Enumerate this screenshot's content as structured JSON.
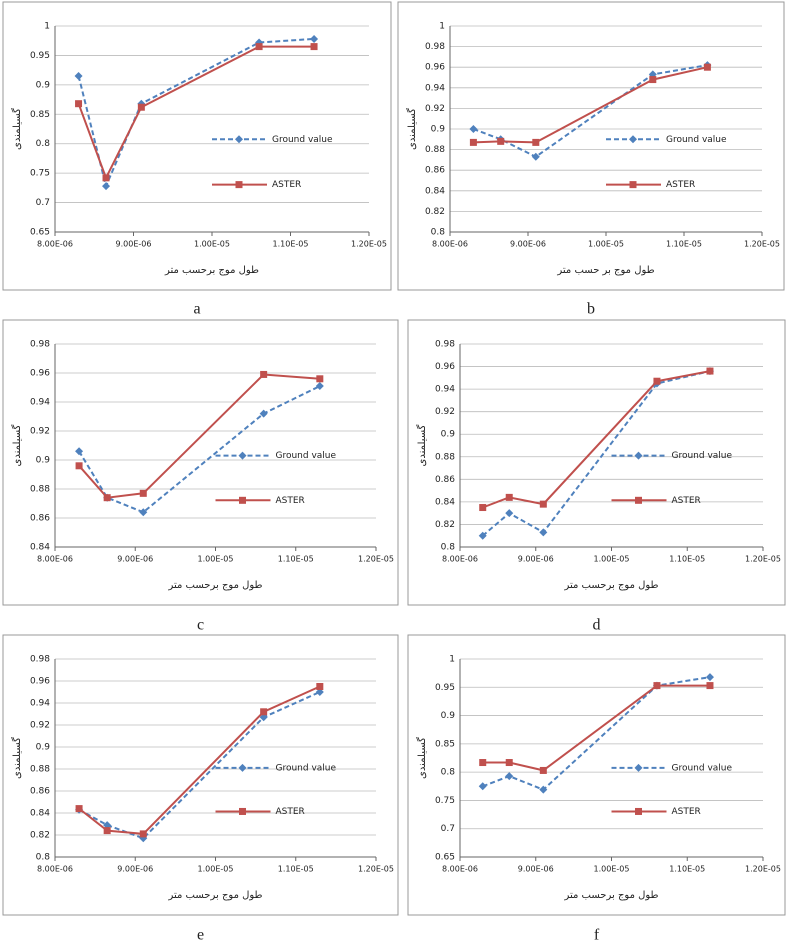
{
  "chart_data": [
    {
      "type": "line",
      "panel": "a",
      "xlabel": "طول موج برحسب متر",
      "ylabel": "گسیلمندی",
      "x": [
        8.3e-06,
        8.65e-06,
        9.1e-06,
        1.06e-05,
        1.13e-05
      ],
      "xlim": [
        8e-06,
        1.2e-05
      ],
      "xticks": [
        {
          "value": 8e-06,
          "label": "8.00E-06"
        },
        {
          "value": 9e-06,
          "label": "9.00E-06"
        },
        {
          "value": 1e-05,
          "label": "1.00E-05"
        },
        {
          "value": 1.1e-05,
          "label": "1.10E-05"
        },
        {
          "value": 1.2e-05,
          "label": "1.20E-05"
        }
      ],
      "ylim": [
        0.65,
        1
      ],
      "yticks": [
        0.65,
        0.7,
        0.75,
        0.8,
        0.85,
        0.9,
        0.95,
        1
      ],
      "grid": true,
      "legend": "right",
      "series": [
        {
          "name": "Ground value",
          "color": "#4f81bd",
          "line_style": "dashed",
          "marker": "diamond",
          "values": [
            0.915,
            0.728,
            0.868,
            0.972,
            0.978
          ]
        },
        {
          "name": "ASTER",
          "color": "#c0504d",
          "line_style": "solid",
          "marker": "square",
          "values": [
            0.868,
            0.742,
            0.862,
            0.965,
            0.965
          ]
        }
      ]
    },
    {
      "type": "line",
      "panel": "b",
      "xlabel": "طول موج بر حسب متر",
      "ylabel": "گسیلمندی",
      "x": [
        8.3e-06,
        8.65e-06,
        9.1e-06,
        1.06e-05,
        1.13e-05
      ],
      "xlim": [
        8e-06,
        1.2e-05
      ],
      "xticks": [
        {
          "value": 8e-06,
          "label": "8.00E-06"
        },
        {
          "value": 9e-06,
          "label": "9.00E-06"
        },
        {
          "value": 1e-05,
          "label": "1.00E-05"
        },
        {
          "value": 1.1e-05,
          "label": "1.10E-05"
        },
        {
          "value": 1.2e-05,
          "label": "1.20E-05"
        }
      ],
      "ylim": [
        0.8,
        1
      ],
      "yticks": [
        0.8,
        0.82,
        0.84,
        0.86,
        0.88,
        0.9,
        0.92,
        0.94,
        0.96,
        0.98,
        1
      ],
      "grid": true,
      "legend": "right",
      "series": [
        {
          "name": "Ground value",
          "color": "#4f81bd",
          "line_style": "dashed",
          "marker": "diamond",
          "values": [
            0.9,
            0.89,
            0.873,
            0.953,
            0.962
          ]
        },
        {
          "name": "ASTER",
          "color": "#c0504d",
          "line_style": "solid",
          "marker": "square",
          "values": [
            0.887,
            0.888,
            0.887,
            0.948,
            0.96
          ]
        }
      ]
    },
    {
      "type": "line",
      "panel": "c",
      "xlabel": "طول موج برحسب متر",
      "ylabel": "گسیلمندی",
      "x": [
        8.3e-06,
        8.65e-06,
        9.1e-06,
        1.06e-05,
        1.13e-05
      ],
      "xlim": [
        8e-06,
        1.2e-05
      ],
      "xticks": [
        {
          "value": 8e-06,
          "label": "8.00E-06"
        },
        {
          "value": 9e-06,
          "label": "9.00E-06"
        },
        {
          "value": 1e-05,
          "label": "1.00E-05"
        },
        {
          "value": 1.1e-05,
          "label": "1.10E-05"
        },
        {
          "value": 1.2e-05,
          "label": "1.20E-05"
        }
      ],
      "ylim": [
        0.84,
        0.98
      ],
      "yticks": [
        0.84,
        0.86,
        0.88,
        0.9,
        0.92,
        0.94,
        0.96,
        0.98
      ],
      "grid": true,
      "legend": "right",
      "series": [
        {
          "name": "Ground value",
          "color": "#4f81bd",
          "line_style": "dashed",
          "marker": "diamond",
          "values": [
            0.906,
            0.874,
            0.864,
            0.932,
            0.951
          ]
        },
        {
          "name": "ASTER",
          "color": "#c0504d",
          "line_style": "solid",
          "marker": "square",
          "values": [
            0.896,
            0.874,
            0.877,
            0.959,
            0.956
          ]
        }
      ]
    },
    {
      "type": "line",
      "panel": "d",
      "xlabel": "طول موج برحسب متر",
      "ylabel": "گسیلمندی",
      "x": [
        8.3e-06,
        8.65e-06,
        9.1e-06,
        1.06e-05,
        1.13e-05
      ],
      "xlim": [
        8e-06,
        1.2e-05
      ],
      "xticks": [
        {
          "value": 8e-06,
          "label": "8.00E-06"
        },
        {
          "value": 9e-06,
          "label": "9.00E-06"
        },
        {
          "value": 1e-05,
          "label": "1.00E-05"
        },
        {
          "value": 1.1e-05,
          "label": "1.10E-05"
        },
        {
          "value": 1.2e-05,
          "label": "1.20E-05"
        }
      ],
      "ylim": [
        0.8,
        0.98
      ],
      "yticks": [
        0.8,
        0.82,
        0.84,
        0.86,
        0.88,
        0.9,
        0.92,
        0.94,
        0.96,
        0.98
      ],
      "grid": true,
      "legend": "right",
      "series": [
        {
          "name": "Ground value",
          "color": "#4f81bd",
          "line_style": "dashed",
          "marker": "diamond",
          "values": [
            0.81,
            0.83,
            0.813,
            0.945,
            0.956
          ]
        },
        {
          "name": "ASTER",
          "color": "#c0504d",
          "line_style": "solid",
          "marker": "square",
          "values": [
            0.835,
            0.844,
            0.838,
            0.947,
            0.956
          ]
        }
      ]
    },
    {
      "type": "line",
      "panel": "e",
      "xlabel": "طول موج برحسب متر",
      "ylabel": "گسیلمندی",
      "x": [
        8.3e-06,
        8.65e-06,
        9.1e-06,
        1.06e-05,
        1.13e-05
      ],
      "xlim": [
        8e-06,
        1.2e-05
      ],
      "xticks": [
        {
          "value": 8e-06,
          "label": "8.00E-06"
        },
        {
          "value": 9e-06,
          "label": "9.00E-06"
        },
        {
          "value": 1e-05,
          "label": "1.00E-05"
        },
        {
          "value": 1.1e-05,
          "label": "1.10E-05"
        },
        {
          "value": 1.2e-05,
          "label": "1.20E-05"
        }
      ],
      "ylim": [
        0.8,
        0.98
      ],
      "yticks": [
        0.8,
        0.82,
        0.84,
        0.86,
        0.88,
        0.9,
        0.92,
        0.94,
        0.96,
        0.98
      ],
      "grid": true,
      "legend": "right",
      "series": [
        {
          "name": "Ground value",
          "color": "#4f81bd",
          "line_style": "dashed",
          "marker": "diamond",
          "values": [
            0.843,
            0.829,
            0.817,
            0.927,
            0.95
          ]
        },
        {
          "name": "ASTER",
          "color": "#c0504d",
          "line_style": "solid",
          "marker": "square",
          "values": [
            0.844,
            0.824,
            0.821,
            0.932,
            0.955
          ]
        }
      ]
    },
    {
      "type": "line",
      "panel": "f",
      "xlabel": "طول موج برحسب متر",
      "ylabel": "گسیلمندی",
      "x": [
        8.3e-06,
        8.65e-06,
        9.1e-06,
        1.06e-05,
        1.13e-05
      ],
      "xlim": [
        8e-06,
        1.2e-05
      ],
      "xticks": [
        {
          "value": 8e-06,
          "label": "8.00E-06"
        },
        {
          "value": 9e-06,
          "label": "9.00E-06"
        },
        {
          "value": 1e-05,
          "label": "1.00E-05"
        },
        {
          "value": 1.1e-05,
          "label": "1.10E-05"
        },
        {
          "value": 1.2e-05,
          "label": "1.20E-05"
        }
      ],
      "ylim": [
        0.65,
        1
      ],
      "yticks": [
        0.65,
        0.7,
        0.75,
        0.8,
        0.85,
        0.9,
        0.95,
        1
      ],
      "grid": true,
      "legend": "right",
      "series": [
        {
          "name": "Ground value",
          "color": "#4f81bd",
          "line_style": "dashed",
          "marker": "diamond",
          "values": [
            0.775,
            0.793,
            0.769,
            0.953,
            0.968
          ]
        },
        {
          "name": "ASTER",
          "color": "#c0504d",
          "line_style": "solid",
          "marker": "square",
          "values": [
            0.817,
            0.817,
            0.803,
            0.953,
            0.953
          ]
        }
      ]
    }
  ]
}
